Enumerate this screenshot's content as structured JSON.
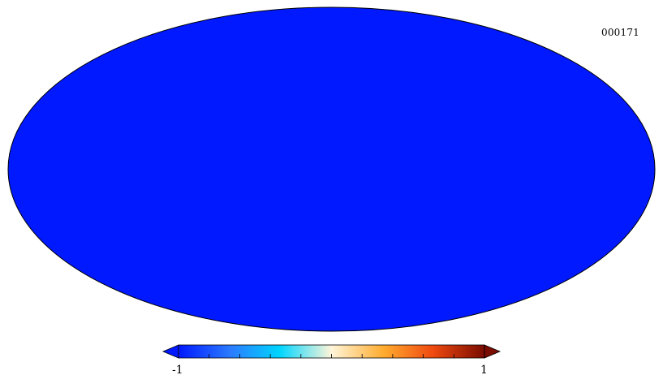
{
  "map": {
    "id_label": "000171",
    "projection": "mollweide",
    "field_type": "random-temperature-fluctuations",
    "colormap": "planck",
    "colors": {
      "deep_blue": "#0019ff",
      "mid_blue": "#2b7bff",
      "cyan": "#00d5ff",
      "pale": "#fff5d9",
      "orange": "#ffac2f",
      "red": "#f04a10",
      "dark_red": "#7a0c00",
      "outline": "#000000"
    }
  },
  "colorbar": {
    "min_label": "-1",
    "max_label": "1",
    "min_value": -1,
    "max_value": 1,
    "tick_count": 11,
    "extend": "both"
  }
}
